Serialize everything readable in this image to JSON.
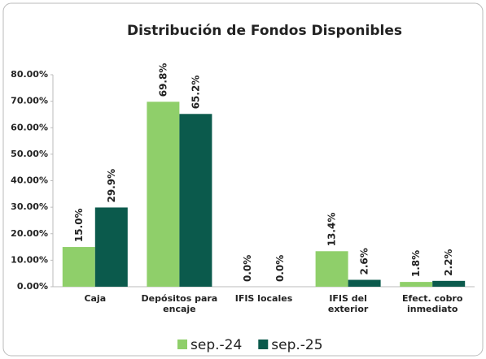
{
  "chart_data": {
    "type": "bar",
    "title": "Distribución de Fondos Disponibles",
    "categories": [
      "Caja",
      "Depósitos para encaje",
      "IFIS locales",
      "IFIS del exterior",
      "Efect. cobro inmediato"
    ],
    "series": [
      {
        "name": "sep.-24",
        "color": "#8fcf6a",
        "values": [
          15.0,
          69.8,
          0.0,
          13.4,
          1.8
        ],
        "value_labels": [
          "15.0%",
          "69.8%",
          "0.0%",
          "13.4%",
          "1.8%"
        ]
      },
      {
        "name": "sep.-25",
        "color": "#0b5a4c",
        "values": [
          29.9,
          65.2,
          0.0,
          2.6,
          2.2
        ],
        "value_labels": [
          "29.9%",
          "65.2%",
          "0.0%",
          "2.6%",
          "2.2%"
        ]
      }
    ],
    "ylim": [
      0,
      80
    ],
    "yticks": [
      {
        "value": 0,
        "label": "0.00%"
      },
      {
        "value": 10,
        "label": "10.00%"
      },
      {
        "value": 20,
        "label": "20.00%"
      },
      {
        "value": 30,
        "label": "30.00%"
      },
      {
        "value": 40,
        "label": "40.00%"
      },
      {
        "value": 50,
        "label": "50.00%"
      },
      {
        "value": 60,
        "label": "60.00%"
      },
      {
        "value": 70,
        "label": "70.00%"
      },
      {
        "value": 80,
        "label": "80.00%"
      }
    ],
    "grid": false,
    "legend": "bottom"
  }
}
